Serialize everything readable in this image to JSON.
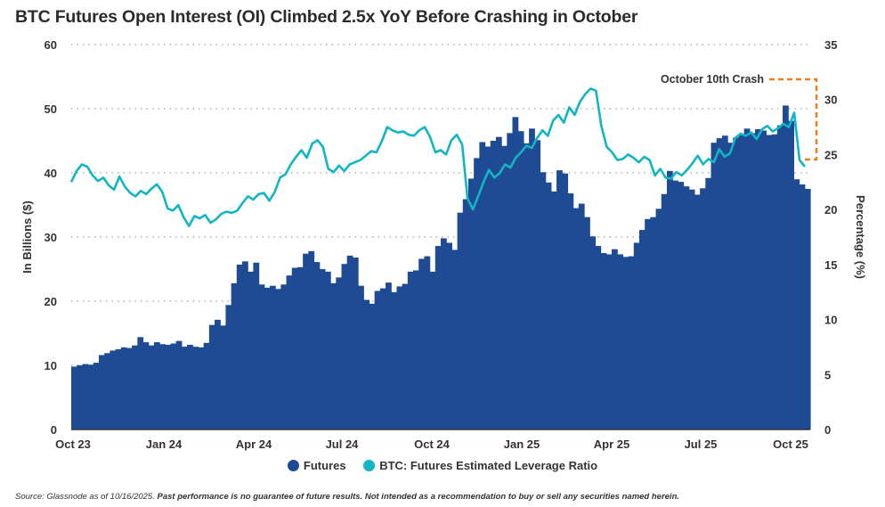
{
  "chart_data": {
    "type": "bar+line",
    "title": "BTC Futures Open Interest (OI) Climbed 2.5x YoY Before Crashing in October",
    "xlabel": "",
    "ylabel_left": "In Billions ($)",
    "ylabel_right": "Percentage (%)",
    "ylim_left": [
      0,
      60
    ],
    "ylim_right": [
      0,
      35
    ],
    "yticks_left": [
      "0",
      "10",
      "20",
      "30",
      "40",
      "50",
      "60"
    ],
    "yticks_right": [
      "0",
      "5",
      "10",
      "15",
      "20",
      "25",
      "30",
      "35"
    ],
    "xtick_labels": [
      "Oct 23",
      "Jan 24",
      "Apr 24",
      "Jul 24",
      "Oct 24",
      "Jan 25",
      "Apr 25",
      "Jul 25",
      "Oct 25"
    ],
    "grid": "horizontal dotted",
    "legend_position": "bottom-center",
    "series": [
      {
        "name": "Futures",
        "type": "bar",
        "axis": "left",
        "color": "#1f4b94",
        "values": [
          9.8,
          10.0,
          10.2,
          10.1,
          10.4,
          11.6,
          11.9,
          12.3,
          12.5,
          12.8,
          12.7,
          13.1,
          14.4,
          13.6,
          13.1,
          13.6,
          13.3,
          13.2,
          13.4,
          13.8,
          12.9,
          13.2,
          12.9,
          12.8,
          13.5,
          16.3,
          17.1,
          16.2,
          19.4,
          22.8,
          25.7,
          26.2,
          24.6,
          26.0,
          22.6,
          22.1,
          22.4,
          21.9,
          22.6,
          24.0,
          25.2,
          25.3,
          27.4,
          27.8,
          26.1,
          25.0,
          24.6,
          22.8,
          23.7,
          25.8,
          27.1,
          26.8,
          22.4,
          20.2,
          19.6,
          21.6,
          22.0,
          22.9,
          21.4,
          22.3,
          22.7,
          24.6,
          24.8,
          26.6,
          27.0,
          24.6,
          28.6,
          29.8,
          29.1,
          28.0,
          33.8,
          35.9,
          39.1,
          42.3,
          44.8,
          44.1,
          45.0,
          45.6,
          44.2,
          46.2,
          48.7,
          46.5,
          44.6,
          46.9,
          45.1,
          40.1,
          38.5,
          37.1,
          40.4,
          39.9,
          36.8,
          34.5,
          35.2,
          33.1,
          30.1,
          28.6,
          27.5,
          27.3,
          28.1,
          27.3,
          26.9,
          27.0,
          29.1,
          31.1,
          32.8,
          33.1,
          34.4,
          36.7,
          40.3,
          38.8,
          38.6,
          37.9,
          37.4,
          36.6,
          37.6,
          39.2,
          44.7,
          45.4,
          45.8,
          44.7,
          45.5,
          46.1,
          46.9,
          46.2,
          46.8,
          46.6,
          45.9,
          46.0,
          47.4,
          50.5,
          48.1,
          39.0,
          38.2,
          37.5
        ]
      },
      {
        "name": "BTC: Futures Estimated Leverage Ratio",
        "type": "line",
        "axis": "right",
        "color": "#11b5c4",
        "values": [
          22.5,
          23.5,
          24.1,
          23.9,
          23.1,
          22.6,
          22.9,
          22.2,
          21.8,
          23.0,
          22.1,
          21.5,
          21.2,
          21.7,
          21.4,
          21.9,
          22.3,
          21.6,
          20.1,
          19.9,
          20.4,
          19.3,
          18.5,
          19.4,
          19.2,
          19.5,
          18.8,
          19.1,
          19.6,
          19.8,
          19.7,
          19.9,
          20.6,
          21.2,
          20.9,
          21.4,
          21.5,
          20.8,
          21.6,
          22.9,
          23.2,
          24.1,
          24.8,
          25.4,
          24.7,
          26.0,
          26.3,
          25.7,
          23.7,
          23.4,
          24.0,
          23.5,
          24.1,
          24.3,
          24.5,
          24.9,
          25.3,
          25.2,
          26.2,
          27.5,
          27.2,
          27.0,
          27.1,
          26.8,
          26.7,
          27.2,
          27.5,
          26.6,
          25.2,
          25.4,
          25.0,
          26.3,
          26.8,
          25.9,
          21.0,
          20.0,
          21.2,
          22.5,
          23.6,
          22.9,
          23.3,
          24.1,
          23.8,
          24.7,
          25.2,
          25.8,
          25.6,
          26.5,
          27.2,
          26.7,
          28.1,
          28.6,
          27.9,
          29.3,
          28.6,
          29.8,
          30.5,
          31.0,
          30.8,
          27.6,
          25.7,
          25.2,
          24.5,
          24.6,
          25.0,
          24.7,
          24.3,
          24.8,
          24.5,
          23.1,
          23.7,
          22.9,
          22.8,
          23.4,
          23.1,
          23.6,
          24.2,
          24.9,
          24.1,
          24.6,
          24.3,
          25.5,
          24.8,
          25.1,
          26.5,
          26.9,
          26.7,
          27.0,
          26.4,
          27.3,
          27.6,
          27.1,
          27.4,
          27.8,
          27.5,
          28.8,
          24.5,
          23.9
        ]
      }
    ],
    "annotations": [
      {
        "text": "October 10th Crash",
        "style": "dashed orange bracket",
        "color": "#f07d1a"
      }
    ]
  },
  "footer": {
    "source": "Source: Glassnode as of 10/16/2025.",
    "disclaimer": "Past performance is no guarantee of future results. Not intended as a recommendation to buy or sell any securities named herein."
  }
}
